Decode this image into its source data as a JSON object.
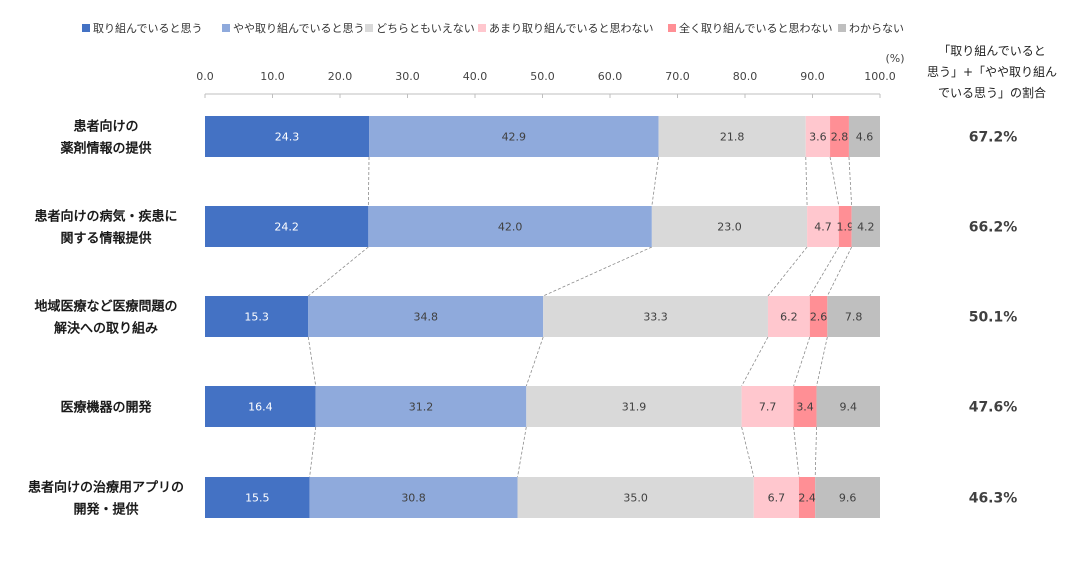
{
  "chart_data": {
    "type": "bar",
    "orientation": "horizontal-stacked",
    "unit": "(%)",
    "xlim": [
      0,
      100
    ],
    "xticks": [
      "0.0",
      "10.0",
      "20.0",
      "30.0",
      "40.0",
      "50.0",
      "60.0",
      "70.0",
      "80.0",
      "90.0",
      "100.0"
    ],
    "categories": [
      [
        "患者向けの",
        "薬剤情報の提供"
      ],
      [
        "患者向けの病気・疾患に",
        "関する情報提供"
      ],
      [
        "地域医療など医療問題の",
        "解決への取り組み"
      ],
      [
        "医療機器の開発"
      ],
      [
        "患者向けの治療用アプリの",
        "開発・提供"
      ]
    ],
    "series": [
      {
        "name": "取り組んでいると思う",
        "color": "#4472c4",
        "label_color": "#ffffff",
        "values": [
          24.3,
          24.2,
          15.3,
          16.4,
          15.5
        ]
      },
      {
        "name": "やや取り組んでいると思う",
        "color": "#8faadc",
        "label_color": "#404040",
        "values": [
          42.9,
          42.0,
          34.8,
          31.2,
          30.8
        ]
      },
      {
        "name": "どちらともいえない",
        "color": "#d9d9d9",
        "label_color": "#404040",
        "values": [
          21.8,
          23.0,
          33.3,
          31.9,
          35.0
        ]
      },
      {
        "name": "あまり取り組んでいると思わない",
        "color": "#ffc7ce",
        "label_color": "#404040",
        "values": [
          3.6,
          4.7,
          6.2,
          7.7,
          6.7
        ]
      },
      {
        "name": "全く取り組んでいると思わない",
        "color": "#ff8f95",
        "label_color": "#404040",
        "values": [
          2.8,
          1.9,
          2.6,
          3.4,
          2.4
        ]
      },
      {
        "name": "わからない",
        "color": "#bfbfbf",
        "label_color": "#404040",
        "values": [
          4.6,
          4.2,
          7.8,
          9.4,
          9.6
        ]
      }
    ],
    "right_header": [
      "「取り組んでいると",
      "思う」+「やや取り組ん",
      "でいる思う」の割合"
    ],
    "right_values": [
      "67.2%",
      "66.2%",
      "50.1%",
      "47.6%",
      "46.3%"
    ],
    "grid": false,
    "legend_position": "top",
    "connector_lines": true
  }
}
